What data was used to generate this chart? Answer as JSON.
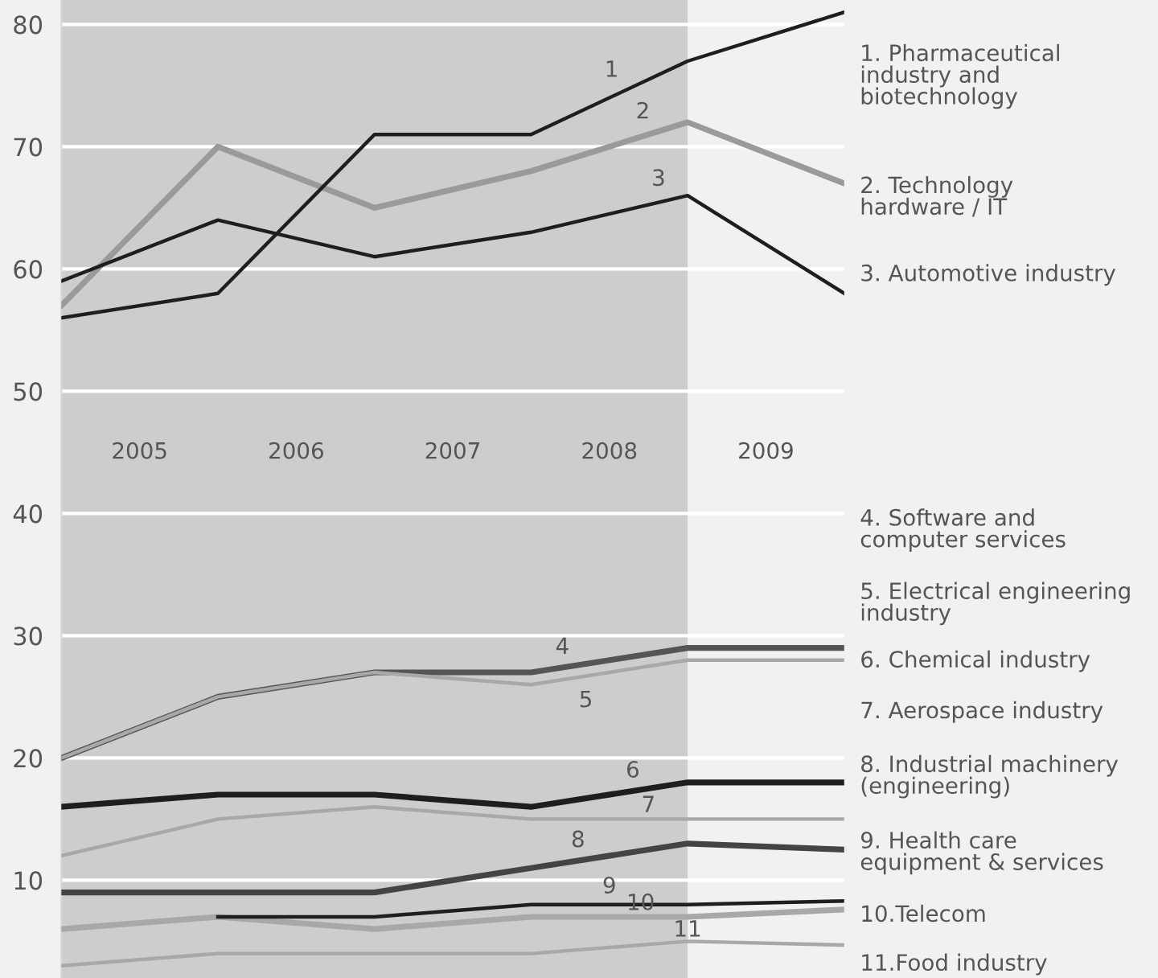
{
  "chart_data": {
    "type": "line",
    "x": [
      2005,
      2006,
      2007,
      2008,
      2009,
      2010
    ],
    "xlim": [
      2005,
      2010
    ],
    "xticks": [
      {
        "value": 2005.5,
        "label": "2005"
      },
      {
        "value": 2006.5,
        "label": "2006"
      },
      {
        "value": 2007.5,
        "label": "2007"
      },
      {
        "value": 2008.5,
        "label": "2008"
      },
      {
        "value": 2009.5,
        "label": "2009"
      }
    ],
    "ylim": [
      2,
      82
    ],
    "yticks": [
      10,
      20,
      30,
      40,
      50,
      60,
      70,
      80
    ],
    "grid": "y",
    "line_style": "solid",
    "marker": "none",
    "bands": [
      {
        "axis": "x",
        "from": 2005,
        "to": 2009,
        "color": "#cdcdcd"
      }
    ],
    "series": [
      {
        "name": "1. Pharmaceutical\nindustry and\nbiotechnology",
        "color": "#1e1e1e",
        "values": [
          56,
          58,
          71,
          71,
          77,
          81
        ]
      },
      {
        "name": "2. Technology\nhardware / IT",
        "color": "#9a9a9a",
        "values": [
          57,
          70,
          65,
          68,
          72,
          67
        ]
      },
      {
        "name": "3. Automotive industry",
        "color": "#1e1e1e",
        "values": [
          59,
          64,
          61,
          63,
          66,
          58
        ]
      },
      {
        "name": "4. Software and\ncomputer services",
        "color": "#555555",
        "values": [
          20,
          25,
          27,
          27,
          29,
          29
        ]
      },
      {
        "name": "5. Electrical engineering\nindustry",
        "color": "#a8a8a8",
        "values": [
          20,
          25,
          27,
          26,
          28,
          28
        ]
      },
      {
        "name": "6. Chemical industry",
        "color": "#1e1e1e",
        "values": [
          16,
          17,
          17,
          16,
          18,
          18
        ]
      },
      {
        "name": "7. Aerospace industry",
        "color": "#a8a8a8",
        "values": [
          12,
          15,
          16,
          15,
          15,
          15
        ]
      },
      {
        "name": "8. Industrial machinery\n(engineering)",
        "color": "#444444",
        "values": [
          9,
          9,
          9,
          11,
          13,
          12.5
        ]
      },
      {
        "name": "9. Health care\nequipment & services",
        "color": "#1e1e1e",
        "values": [
          null,
          7,
          7,
          8,
          8,
          8.3
        ]
      },
      {
        "name": "10.Telecom",
        "color": "#a8a8a8",
        "values": [
          6,
          7,
          6,
          7,
          7,
          7.6
        ]
      },
      {
        "name": "11.Food industry",
        "color": "#a8a8a8",
        "values": [
          3,
          4,
          4,
          4,
          5,
          4.7
        ]
      }
    ],
    "annotations": [
      {
        "text": "1",
        "x": 2008.6,
        "y": 74.6
      },
      {
        "text": "2",
        "x": 2008.8,
        "y": 71.2
      },
      {
        "text": "3",
        "x": 2008.9,
        "y": 65.7
      },
      {
        "text": "4",
        "x": 2008.2,
        "y": 27.4
      },
      {
        "text": "5",
        "x": 2008.35,
        "y": 26.7
      },
      {
        "text": "6",
        "x": 2008.65,
        "y": 17.3
      },
      {
        "text": "7",
        "x": 2008.75,
        "y": 15
      },
      {
        "text": "8",
        "x": 2008.3,
        "y": 11.6
      },
      {
        "text": "9",
        "x": 2008.5,
        "y": 8
      },
      {
        "text": "10",
        "x": 2008.7,
        "y": 7
      },
      {
        "text": "11",
        "x": 2009.0,
        "y": 5
      }
    ]
  }
}
